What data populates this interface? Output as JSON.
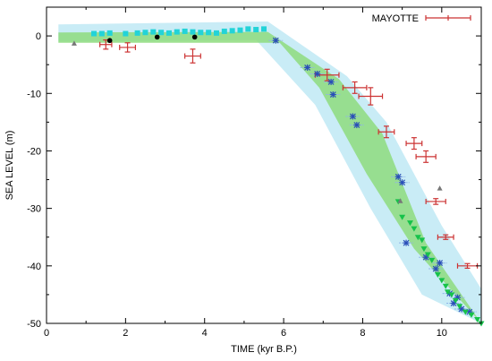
{
  "chart_data": {
    "type": "scatter",
    "xlabel": "TIME (kyr B.P.)",
    "ylabel": "SEA LEVEL (m)",
    "xlim": [
      0,
      11
    ],
    "ylim": [
      -50,
      5
    ],
    "xticks": [
      0,
      2,
      4,
      6,
      8,
      10
    ],
    "yticks": [
      0,
      -10,
      -20,
      -30,
      -40,
      -50
    ],
    "legend_position": "top-right",
    "grid": false,
    "bands": [
      {
        "color": "#bfe9f5",
        "upper": [
          [
            0.3,
            2
          ],
          [
            5.6,
            2.5
          ],
          [
            7.6,
            -7
          ],
          [
            8.6,
            -15
          ],
          [
            10,
            -33
          ],
          [
            11,
            -44
          ]
        ],
        "lower": [
          [
            11,
            -50
          ],
          [
            9.5,
            -45
          ],
          [
            8.2,
            -30
          ],
          [
            6.8,
            -12
          ],
          [
            5.3,
            -0.7
          ],
          [
            0.3,
            -1
          ]
        ]
      },
      {
        "color": "#8edc7e",
        "upper": [
          [
            0.3,
            0.6
          ],
          [
            5.6,
            0.7
          ],
          [
            7.4,
            -7.5
          ],
          [
            8.5,
            -17
          ],
          [
            9.6,
            -36
          ],
          [
            11,
            -50
          ]
        ],
        "lower": [
          [
            11,
            -50
          ],
          [
            9.3,
            -37
          ],
          [
            8.1,
            -24
          ],
          [
            6.9,
            -9
          ],
          [
            5.9,
            -1.2
          ],
          [
            0.3,
            -1.2
          ]
        ]
      }
    ],
    "series": [
      {
        "name": "MAYOTTE",
        "color": "#cc3333",
        "points": [
          [
            1.5,
            -1.5
          ],
          [
            2.05,
            -2.0
          ],
          [
            3.7,
            -3.5
          ],
          [
            7.1,
            -6.8
          ],
          [
            7.8,
            -9.0
          ],
          [
            8.2,
            -10.5
          ],
          [
            8.6,
            -16.7
          ],
          [
            9.3,
            -18.7
          ],
          [
            9.6,
            -21.0
          ],
          [
            9.85,
            -28.8
          ],
          [
            10.1,
            -35.0
          ],
          [
            10.65,
            -40.0
          ]
        ],
        "xerr": [
          0.15,
          0.2,
          0.2,
          0.3,
          0.3,
          0.3,
          0.2,
          0.2,
          0.25,
          0.25,
          0.2,
          0.25
        ],
        "yerr": [
          0.8,
          0.8,
          1.2,
          1.0,
          1.0,
          1.5,
          1.0,
          1.0,
          1.0,
          0.5,
          0.4,
          0.4
        ]
      }
    ],
    "other_points": {
      "cyan_squares": [
        [
          1.2,
          0.4
        ],
        [
          1.4,
          0.4
        ],
        [
          1.6,
          0.5
        ],
        [
          2.0,
          0.4
        ],
        [
          2.3,
          0.5
        ],
        [
          2.5,
          0.6
        ],
        [
          2.7,
          0.7
        ],
        [
          2.9,
          0.6
        ],
        [
          3.1,
          0.5
        ],
        [
          3.3,
          0.7
        ],
        [
          3.5,
          0.8
        ],
        [
          3.7,
          0.7
        ],
        [
          3.9,
          0.6
        ],
        [
          4.1,
          0.6
        ],
        [
          4.3,
          0.5
        ],
        [
          4.5,
          0.8
        ],
        [
          4.7,
          0.9
        ],
        [
          4.9,
          1.0
        ],
        [
          5.1,
          1.2
        ],
        [
          5.3,
          1.1
        ],
        [
          5.5,
          1.2
        ]
      ],
      "black_dots": [
        [
          1.6,
          -0.8
        ],
        [
          2.8,
          -0.2
        ],
        [
          3.75,
          -0.2
        ]
      ],
      "gray_triangles": [
        [
          0.7,
          -1.3
        ],
        [
          8.95,
          -28.7
        ],
        [
          9.95,
          -26.5
        ]
      ],
      "blue_stars": [
        [
          5.8,
          -0.8
        ],
        [
          6.6,
          -5.5
        ],
        [
          6.85,
          -6.6
        ],
        [
          7.2,
          -8.0
        ],
        [
          7.25,
          -10.2
        ],
        [
          7.75,
          -14.0
        ],
        [
          7.85,
          -15.5
        ],
        [
          8.9,
          -24.5
        ],
        [
          9.0,
          -25.5
        ],
        [
          9.1,
          -36.0
        ],
        [
          9.6,
          -38.5
        ],
        [
          9.85,
          -40.5
        ],
        [
          9.95,
          -39.5
        ],
        [
          10.2,
          -44.8
        ],
        [
          10.3,
          -46.5
        ],
        [
          10.5,
          -47.5
        ],
        [
          10.7,
          -48.0
        ],
        [
          10.4,
          -45.5
        ]
      ],
      "green_triangles": [
        [
          8.9,
          -28.8
        ],
        [
          9.0,
          -31.5
        ],
        [
          9.2,
          -32.5
        ],
        [
          9.3,
          -33.5
        ],
        [
          9.4,
          -35.0
        ],
        [
          9.5,
          -35.5
        ],
        [
          9.55,
          -37.0
        ],
        [
          9.65,
          -38.0
        ],
        [
          9.75,
          -39.0
        ],
        [
          9.9,
          -41.5
        ],
        [
          10.0,
          -42.5
        ],
        [
          10.1,
          -43.5
        ],
        [
          10.15,
          -44.5
        ],
        [
          10.25,
          -45.0
        ],
        [
          10.35,
          -46.0
        ],
        [
          10.45,
          -47.0
        ],
        [
          10.6,
          -48.0
        ],
        [
          10.75,
          -48.5
        ],
        [
          10.9,
          -49.3
        ],
        [
          11.0,
          -50.0
        ]
      ]
    }
  }
}
